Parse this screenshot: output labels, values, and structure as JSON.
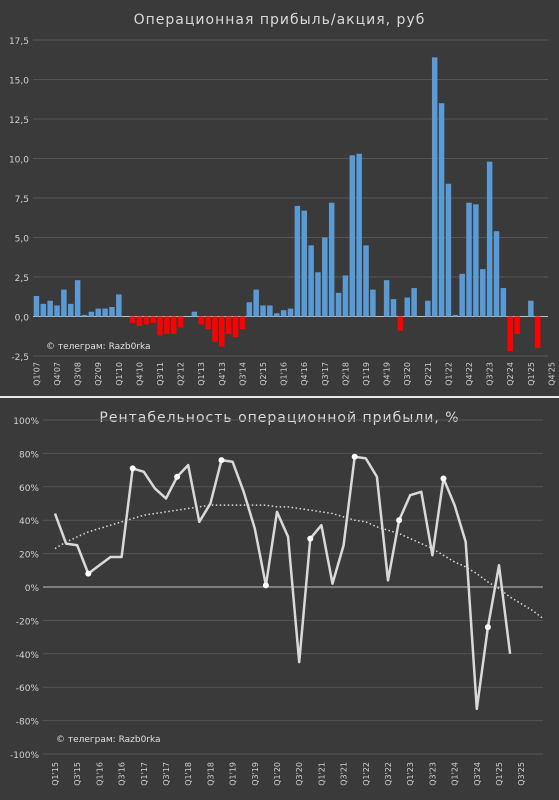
{
  "colors": {
    "positive": "#5b9bd5",
    "negative": "#ff0000",
    "line": "#d9d9d9",
    "trend": "#d9d9d9",
    "axis_text": "#d0d0d0",
    "grid": "#555555"
  },
  "chart_data": [
    {
      "type": "bar",
      "title": "Операционная прибыль/акция, руб",
      "annotation": "© телеграм: Razb0rka",
      "ylim": [
        -2.5,
        17.5
      ],
      "yticks": [
        -2.5,
        0.0,
        2.5,
        5.0,
        7.5,
        10.0,
        12.5,
        15.0,
        17.5
      ],
      "ytick_labels": [
        "-2,5",
        "0,0",
        "2,5",
        "5,0",
        "7,5",
        "10,0",
        "12,5",
        "15,0",
        "17,5"
      ],
      "grid": "horizontal",
      "category_start": "Q1'07",
      "tick_labels": [
        "Q1'07",
        "Q4'07",
        "Q3'08",
        "Q2'09",
        "Q1'10",
        "Q4'10",
        "Q3'11",
        "Q2'12",
        "Q1'13",
        "Q4'13",
        "Q3'14",
        "Q2'15",
        "Q1'16",
        "Q4'16",
        "Q3'17",
        "Q2'18",
        "Q1'19",
        "Q4'19",
        "Q3'20",
        "Q2'21",
        "Q1'22",
        "Q4'22",
        "Q3'23",
        "Q2'24",
        "Q1'25",
        "Q4'25"
      ],
      "values": [
        1.3,
        0.8,
        1.0,
        0.7,
        1.7,
        0.8,
        2.3,
        0.1,
        0.3,
        0.5,
        0.5,
        0.6,
        1.4,
        0.0,
        -0.4,
        -0.6,
        -0.5,
        -0.4,
        -1.2,
        -1.1,
        -1.1,
        -0.7,
        0.0,
        0.3,
        -0.5,
        -0.8,
        -1.6,
        -1.9,
        -1.1,
        -1.3,
        -0.8,
        0.9,
        1.7,
        0.7,
        0.7,
        0.2,
        0.4,
        0.5,
        7.0,
        6.7,
        4.5,
        2.8,
        5.0,
        7.2,
        1.5,
        2.6,
        10.2,
        10.3,
        4.5,
        1.7,
        0.0,
        2.3,
        1.1,
        -0.9,
        1.2,
        1.8,
        0.0,
        1.0,
        16.4,
        13.5,
        8.4,
        0.1,
        2.7,
        7.2,
        7.1,
        3.0,
        9.8,
        5.4,
        1.8,
        -2.2,
        -1.1,
        0.0,
        1.0,
        -2.0,
        0.0
      ]
    },
    {
      "type": "line",
      "title": "Рентабельность операционной прибыли, %",
      "annotation": "© телеграм: Razb0rka",
      "ylim": [
        -100,
        100
      ],
      "yticks": [
        -100,
        -80,
        -60,
        -40,
        -20,
        0,
        20,
        40,
        60,
        80,
        100
      ],
      "ytick_labels": [
        "-100%",
        "-80%",
        "-60%",
        "-40%",
        "-20%",
        "0%",
        "20%",
        "40%",
        "60%",
        "80%",
        "100%"
      ],
      "grid": "horizontal",
      "trendline": "polynomial",
      "category_start": "Q1'15",
      "tick_labels": [
        "Q1'15",
        "Q3'15",
        "Q1'16",
        "Q3'16",
        "Q1'17",
        "Q3'17",
        "Q1'18",
        "Q3'18",
        "Q1'19",
        "Q3'19",
        "Q1'20",
        "Q3'20",
        "Q1'21",
        "Q3'21",
        "Q1'22",
        "Q3'22",
        "Q1'23",
        "Q3'23",
        "Q1'24",
        "Q3'24",
        "Q1'25",
        "Q3'25"
      ],
      "values": [
        44,
        26,
        25,
        8,
        13,
        18,
        18,
        71,
        69,
        59,
        53,
        66,
        73,
        39,
        50,
        76,
        75,
        57,
        35,
        1,
        45,
        30,
        -45,
        29,
        37,
        2,
        25,
        78,
        77,
        66,
        4,
        40,
        55,
        57,
        19,
        65,
        49,
        27,
        -73,
        -24,
        13,
        -40
      ],
      "marked_points": [
        3,
        7,
        11,
        15,
        19,
        23,
        27,
        31,
        35,
        39
      ],
      "trend_values": [
        23,
        27,
        30,
        33,
        35,
        37,
        39,
        41,
        43,
        44,
        45,
        46,
        47,
        48,
        49,
        49,
        49,
        49,
        49,
        49,
        48,
        48,
        47,
        46,
        45,
        44,
        42,
        40,
        39,
        36,
        34,
        32,
        29,
        26,
        23,
        19,
        15,
        12,
        8,
        3,
        -1,
        -6,
        -10,
        -14,
        -19
      ]
    }
  ]
}
